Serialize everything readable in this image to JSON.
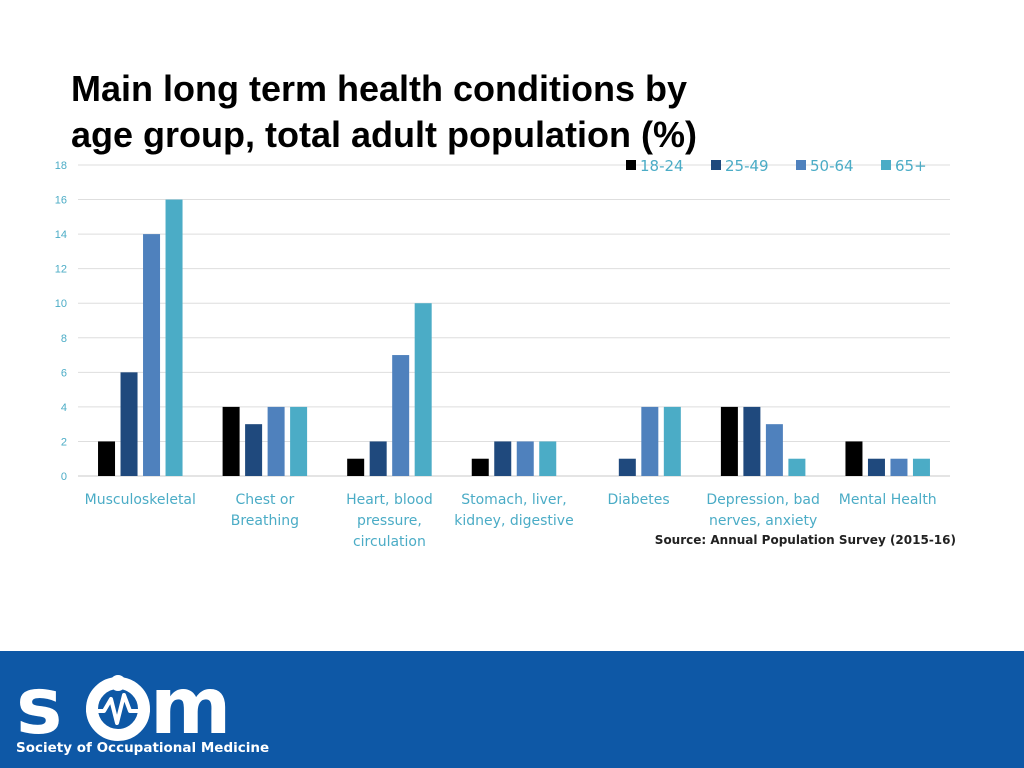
{
  "slide": {
    "title_line1": "Main long term health conditions by",
    "title_line2": "age group, total adult population (%)",
    "source": "Source: Annual Population Survey (2015-16)"
  },
  "footer": {
    "logo_letters": "SOM",
    "org_name": "Society of Occupational Medicine",
    "background": "#0e58a6",
    "logo_icon": "heartbeat-figure-icon"
  },
  "chart_data": {
    "type": "bar",
    "title": "Main long term health conditions by age group, total adult population (%)",
    "categories": [
      [
        "Musculoskeletal"
      ],
      [
        "Chest or",
        "Breathing"
      ],
      [
        "Heart, blood",
        "pressure,",
        "circulation"
      ],
      [
        "Stomach, liver,",
        "kidney, digestive"
      ],
      [
        "Diabetes"
      ],
      [
        "Depression, bad",
        "nerves, anxiety"
      ],
      [
        "Mental Health"
      ]
    ],
    "series": [
      {
        "name": "18-24",
        "color": "#000000",
        "values": [
          2,
          4,
          1,
          1,
          0,
          4,
          2
        ]
      },
      {
        "name": "25-49",
        "color": "#1f497d",
        "values": [
          6,
          3,
          2,
          2,
          1,
          4,
          1
        ]
      },
      {
        "name": "50-64",
        "color": "#4f81bd",
        "values": [
          14,
          4,
          7,
          2,
          4,
          3,
          1
        ]
      },
      {
        "name": "65+",
        "color": "#4bacc6",
        "values": [
          16,
          4,
          10,
          2,
          4,
          1,
          1
        ]
      }
    ],
    "ylim": [
      0,
      18
    ],
    "yticks": [
      0,
      2,
      4,
      6,
      8,
      10,
      12,
      14,
      16,
      18
    ],
    "grid": true,
    "legend": "top-right",
    "xlabel": "",
    "ylabel": ""
  }
}
